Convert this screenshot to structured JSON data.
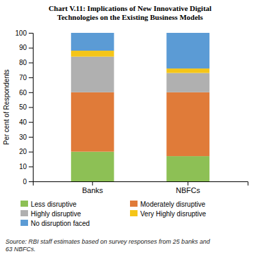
{
  "chart_data": {
    "type": "bar",
    "stacked": true,
    "title": "Chart V.11: Implications of New Innovative Digital\nTechnologies on the Existing Business Models",
    "categories": [
      "Banks",
      "NBFCs"
    ],
    "series": [
      {
        "name": "Less disruptive",
        "color": "#8dc055",
        "values": [
          20,
          17
        ]
      },
      {
        "name": "Moderately disruptive",
        "color": "#e07b39",
        "values": [
          40,
          43
        ]
      },
      {
        "name": "Highly disruptive",
        "color": "#b0b0b0",
        "values": [
          24,
          13
        ]
      },
      {
        "name": "Very Highly disruptive",
        "color": "#f5c518",
        "values": [
          4,
          3
        ]
      },
      {
        "name": "No disruption faced",
        "color": "#5b9bd5",
        "values": [
          12,
          24
        ]
      }
    ],
    "ylabel": "Per cent of Respondents",
    "ylim": [
      0,
      100
    ],
    "yticks": [
      0,
      10,
      20,
      30,
      40,
      50,
      60,
      70,
      80,
      90,
      100
    ],
    "grid": false,
    "legend": "bottom",
    "source": "Source: RBI staff estimates based on survey responses from 25 banks and\n63 NBFCs."
  }
}
